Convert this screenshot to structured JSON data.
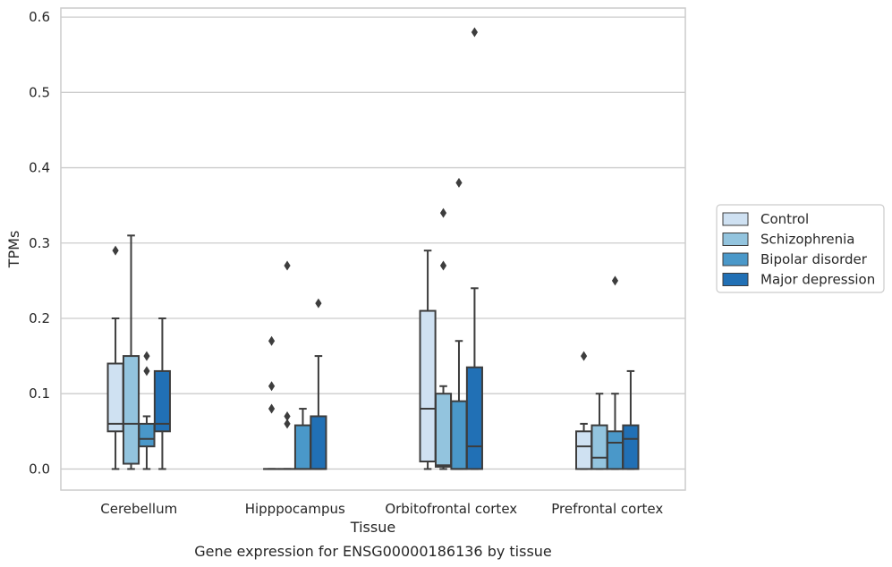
{
  "caption": "Gene expression for ENSG00000186136 by tissue",
  "chart_data": {
    "type": "box",
    "title": "",
    "xlabel": "Tissue",
    "ylabel": "TPMs",
    "ylim": [
      -0.028,
      0.612
    ],
    "yticks": [
      0.0,
      0.1,
      0.2,
      0.3,
      0.4,
      0.5,
      0.6
    ],
    "ytick_labels": [
      "0.0",
      "0.1",
      "0.2",
      "0.3",
      "0.4",
      "0.5",
      "0.6"
    ],
    "grid": "horizontal",
    "legend_position": "right",
    "categories": [
      "Cerebellum",
      "Hipppocampus",
      "Orbitofrontal cortex",
      "Prefrontal cortex"
    ],
    "series": [
      {
        "name": "Control",
        "color": "#cfe1f2",
        "boxes": [
          {
            "whislo": 0.0,
            "q1": 0.05,
            "med": 0.06,
            "q3": 0.14,
            "whishi": 0.2,
            "fliers": [
              0.29
            ]
          },
          {
            "whislo": 0.0,
            "q1": 0.0,
            "med": 0.0,
            "q3": 0.0,
            "whishi": 0.0,
            "fliers": [
              0.08,
              0.11,
              0.17
            ]
          },
          {
            "whislo": 0.0,
            "q1": 0.01,
            "med": 0.08,
            "q3": 0.21,
            "whishi": 0.29,
            "fliers": []
          },
          {
            "whislo": 0.0,
            "q1": 0.0,
            "med": 0.03,
            "q3": 0.05,
            "whishi": 0.06,
            "fliers": [
              0.15
            ]
          }
        ]
      },
      {
        "name": "Schizophrenia",
        "color": "#93c4de",
        "boxes": [
          {
            "whislo": 0.0,
            "q1": 0.007,
            "med": 0.06,
            "q3": 0.15,
            "whishi": 0.31,
            "fliers": []
          },
          {
            "whislo": 0.0,
            "q1": 0.0,
            "med": 0.0,
            "q3": 0.0,
            "whishi": 0.0,
            "fliers": [
              0.06,
              0.07,
              0.27
            ]
          },
          {
            "whislo": 0.0,
            "q1": 0.003,
            "med": 0.005,
            "q3": 0.1,
            "whishi": 0.11,
            "fliers": [
              0.27,
              0.34
            ]
          },
          {
            "whislo": 0.0,
            "q1": 0.0,
            "med": 0.015,
            "q3": 0.058,
            "whishi": 0.1,
            "fliers": []
          }
        ]
      },
      {
        "name": "Bipolar disorder",
        "color": "#4a98c9",
        "boxes": [
          {
            "whislo": 0.0,
            "q1": 0.03,
            "med": 0.04,
            "q3": 0.06,
            "whishi": 0.07,
            "fliers": [
              0.13,
              0.15
            ]
          },
          {
            "whislo": 0.0,
            "q1": 0.0,
            "med": 0.0,
            "q3": 0.058,
            "whishi": 0.08,
            "fliers": []
          },
          {
            "whislo": 0.0,
            "q1": 0.0,
            "med": 0.0,
            "q3": 0.09,
            "whishi": 0.17,
            "fliers": [
              0.38
            ]
          },
          {
            "whislo": 0.0,
            "q1": 0.0,
            "med": 0.035,
            "q3": 0.05,
            "whishi": 0.1,
            "fliers": [
              0.25
            ]
          }
        ]
      },
      {
        "name": "Major depression",
        "color": "#2170b5",
        "boxes": [
          {
            "whislo": 0.0,
            "q1": 0.05,
            "med": 0.06,
            "q3": 0.13,
            "whishi": 0.2,
            "fliers": []
          },
          {
            "whislo": 0.0,
            "q1": 0.0,
            "med": 0.0,
            "q3": 0.07,
            "whishi": 0.15,
            "fliers": [
              0.22
            ]
          },
          {
            "whislo": 0.0,
            "q1": 0.0,
            "med": 0.03,
            "q3": 0.135,
            "whishi": 0.24,
            "fliers": [
              0.58
            ]
          },
          {
            "whislo": 0.0,
            "q1": 0.0,
            "med": 0.04,
            "q3": 0.058,
            "whishi": 0.13,
            "fliers": []
          }
        ]
      }
    ]
  }
}
